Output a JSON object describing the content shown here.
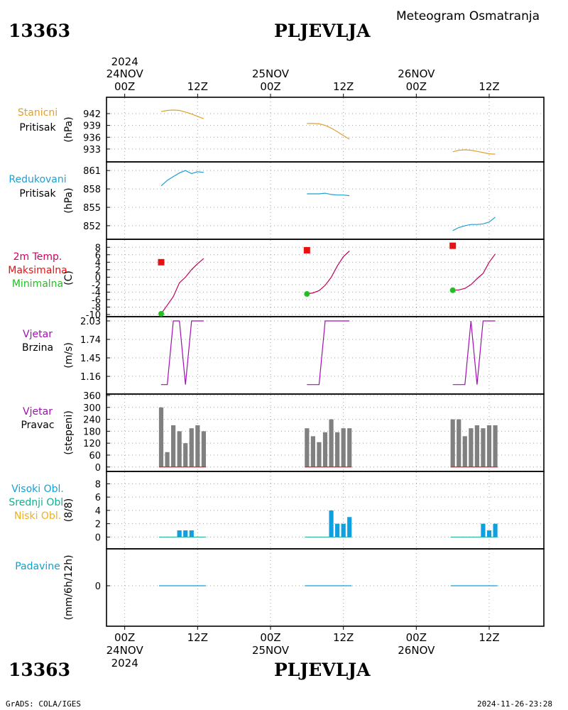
{
  "header": {
    "station_id": "13363",
    "station_name": "PLJEVLJA",
    "chart_title": "Meteogram Osmatranja"
  },
  "footer": {
    "station_id": "13363",
    "station_name": "PLJEVLJA",
    "credit": "GrADS: COLA/IGES",
    "timestamp": "2024-11-26-23:28"
  },
  "time_axis": {
    "top_year": "2024",
    "bottom_year": "2024",
    "day_labels": [
      "24NOV",
      "25NOV",
      "26NOV"
    ],
    "hour_labels": [
      "00Z",
      "12Z",
      "00Z",
      "12Z",
      "00Z",
      "12Z"
    ],
    "hour_ticks": [
      0,
      12,
      24,
      36,
      48,
      60
    ],
    "grid_hours": [
      0,
      12,
      24,
      36,
      48,
      60
    ],
    "range_hours": [
      -3,
      69
    ]
  },
  "colors": {
    "station_pressure": "#e0a030",
    "reduced_pressure": "#1ea0d0",
    "temp_label": "#d00060",
    "temp_line": "#c0005a",
    "tmax": "#e81010",
    "tmin": "#20c020",
    "wind": "#a010b0",
    "wind_dir_bar": "#808080",
    "wind_dir_base": "#e02020",
    "high_clouds": "#10a0e0",
    "mid_clouds": "#10b090",
    "low_clouds": "#f0b020",
    "precip": "#10a0d0",
    "grid": "#a0a0a0"
  },
  "chart_data": [
    {
      "type": "line",
      "panel": "station_pressure",
      "labels": [
        "Stanicni",
        "Pritisak"
      ],
      "ylabel": "(hPa)",
      "yticks": [
        933,
        936,
        939,
        942
      ],
      "ylim": [
        931,
        943.8
      ],
      "series": [
        {
          "x": [
            6,
            7,
            8,
            9,
            10,
            11,
            12,
            13
          ],
          "values": [
            942.5,
            942.8,
            942.9,
            942.8,
            942.4,
            941.9,
            941.3,
            940.7
          ]
        },
        {
          "x": [
            30,
            31,
            32,
            33,
            34,
            35,
            36,
            37
          ],
          "values": [
            939.5,
            939.5,
            939.4,
            939.0,
            938.3,
            937.4,
            936.4,
            935.5
          ]
        },
        {
          "x": [
            54,
            55,
            56,
            57,
            58,
            59,
            60,
            61
          ],
          "values": [
            932.3,
            932.7,
            932.8,
            932.7,
            932.4,
            932.1,
            931.8,
            931.7
          ]
        }
      ]
    },
    {
      "type": "line",
      "panel": "reduced_pressure",
      "labels": [
        "Redukovani",
        "Pritisak"
      ],
      "ylabel": "(hPa)",
      "yticks": [
        852,
        855,
        858,
        861
      ],
      "ylim": [
        850.6,
        861.6
      ],
      "series": [
        {
          "x": [
            6,
            7,
            8,
            9,
            10,
            11,
            12,
            13
          ],
          "values": [
            858.5,
            859.4,
            860.0,
            860.6,
            861.0,
            860.5,
            860.8,
            860.7
          ]
        },
        {
          "x": [
            30,
            31,
            32,
            33,
            34,
            35,
            36,
            37
          ],
          "values": [
            857.2,
            857.2,
            857.2,
            857.3,
            857.1,
            857.0,
            857.0,
            856.9
          ]
        },
        {
          "x": [
            54,
            55,
            56,
            57,
            58,
            59,
            60,
            61
          ],
          "values": [
            851.2,
            851.7,
            852.0,
            852.2,
            852.2,
            852.3,
            852.6,
            853.4
          ]
        }
      ]
    },
    {
      "type": "line",
      "panel": "temperature",
      "labels": [
        "2m Temp.",
        "Maksimalna",
        "Minimalna"
      ],
      "ylabel": "(C)",
      "yticks": [
        -10,
        -8,
        -6,
        -4,
        -2,
        0,
        2,
        4,
        6,
        8
      ],
      "ylim": [
        -10,
        9
      ],
      "series": [
        {
          "x": [
            6,
            7,
            8,
            9,
            10,
            11,
            12,
            13
          ],
          "values": [
            -9.8,
            -7.5,
            -5.2,
            -1.5,
            0.0,
            2.0,
            3.6,
            5.0
          ]
        },
        {
          "x": [
            30,
            31,
            32,
            33,
            34,
            35,
            36,
            37
          ],
          "values": [
            -4.5,
            -4.2,
            -3.6,
            -2.2,
            0.0,
            3.0,
            5.5,
            7.0
          ]
        },
        {
          "x": [
            54,
            55,
            56,
            57,
            58,
            59,
            60,
            61
          ],
          "values": [
            -3.5,
            -3.4,
            -3.0,
            -2.0,
            -0.4,
            1.0,
            4.0,
            6.2
          ]
        }
      ],
      "maxima": [
        {
          "x": 6,
          "value": 4.0
        },
        {
          "x": 30,
          "value": 7.2
        },
        {
          "x": 54,
          "value": 8.4
        }
      ],
      "minima": [
        {
          "x": 6,
          "value": -9.8
        },
        {
          "x": 30,
          "value": -4.5
        },
        {
          "x": 54,
          "value": -3.5
        }
      ]
    },
    {
      "type": "line",
      "panel": "wind_speed",
      "labels": [
        "Vjetar",
        "Brzina"
      ],
      "ylabel": "(m/s)",
      "yticks": [
        1.16,
        1.45,
        1.74,
        2.03
      ],
      "ylim": [
        0.96,
        2.03
      ],
      "series": [
        {
          "x": [
            6,
            7,
            8,
            9,
            10,
            11,
            12,
            13
          ],
          "values": [
            1.03,
            1.03,
            2.03,
            2.03,
            1.03,
            2.03,
            2.03,
            2.03
          ]
        },
        {
          "x": [
            30,
            31,
            32,
            33,
            34,
            35,
            36,
            37
          ],
          "values": [
            1.03,
            1.03,
            1.03,
            2.03,
            2.03,
            2.03,
            2.03,
            2.03
          ]
        },
        {
          "x": [
            54,
            55,
            56,
            57,
            58,
            59,
            60,
            61
          ],
          "values": [
            1.03,
            1.03,
            1.03,
            2.03,
            1.03,
            2.03,
            2.03,
            2.03
          ]
        }
      ]
    },
    {
      "type": "bar",
      "panel": "wind_direction",
      "labels": [
        "Vjetar",
        "Pravac"
      ],
      "ylabel": "(stepeni)",
      "yticks": [
        0,
        60,
        120,
        180,
        240,
        300,
        360
      ],
      "ylim": [
        -8,
        360
      ],
      "x": [
        6,
        7,
        8,
        9,
        10,
        11,
        12,
        13,
        30,
        31,
        32,
        33,
        34,
        35,
        36,
        37,
        54,
        55,
        56,
        57,
        58,
        59,
        60,
        61
      ],
      "values": [
        300,
        75,
        210,
        180,
        120,
        195,
        210,
        180,
        195,
        155,
        125,
        175,
        240,
        175,
        195,
        195,
        240,
        240,
        155,
        195,
        210,
        195,
        210,
        210
      ]
    },
    {
      "type": "bar",
      "panel": "clouds",
      "labels": [
        "Visoki Obl.",
        "Srednji Obl.",
        "Niski Obl."
      ],
      "ylabel": "(8/8)",
      "yticks": [
        0,
        2,
        4,
        6,
        8
      ],
      "ylim": [
        -0.6,
        9.0
      ],
      "x": [
        6,
        7,
        8,
        9,
        10,
        11,
        12,
        13,
        30,
        31,
        32,
        33,
        34,
        35,
        36,
        37,
        54,
        55,
        56,
        57,
        58,
        59,
        60,
        61
      ],
      "high": [
        0,
        0,
        0,
        1,
        1,
        1,
        0,
        0,
        0,
        0,
        0,
        0,
        4,
        2,
        2,
        3,
        0,
        0,
        0,
        0,
        0,
        2,
        1,
        2
      ],
      "mid": [
        0,
        0,
        0,
        0,
        0,
        0,
        0,
        0,
        0,
        0,
        0,
        0,
        0,
        0,
        0,
        0,
        0,
        0,
        0,
        0,
        0,
        0,
        0,
        0
      ],
      "low": [
        0,
        0,
        0,
        0,
        0,
        0,
        0,
        0,
        0,
        0,
        0,
        0,
        0,
        0,
        0,
        0,
        0,
        0,
        0,
        0,
        0,
        0,
        0,
        0
      ]
    },
    {
      "type": "bar",
      "panel": "precipitation",
      "labels": [
        "Padavine"
      ],
      "ylabel": "(mm/6h/12h)",
      "yticks": [
        0
      ],
      "ylim": [
        -1,
        1
      ],
      "x": [
        6,
        7,
        8,
        9,
        10,
        11,
        12,
        13,
        30,
        31,
        32,
        33,
        34,
        35,
        36,
        37,
        54,
        55,
        56,
        57,
        58,
        59,
        60,
        61
      ],
      "values": [
        0,
        0,
        0,
        0,
        0,
        0,
        0,
        0,
        0,
        0,
        0,
        0,
        0,
        0,
        0,
        0,
        0,
        0,
        0,
        0,
        0,
        0,
        0,
        0
      ]
    }
  ]
}
